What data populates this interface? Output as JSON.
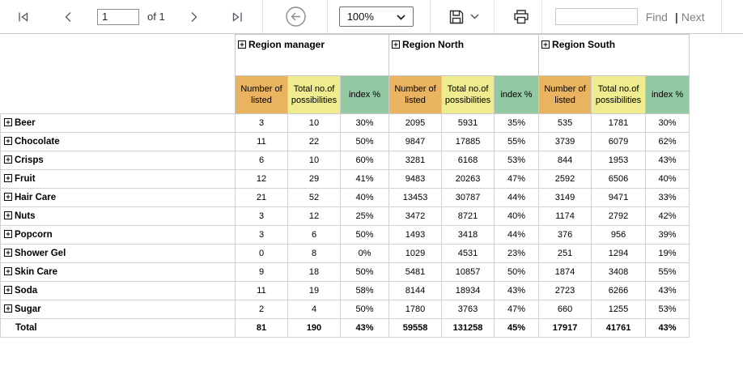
{
  "toolbar": {
    "page_input_value": "1",
    "page_count_label": "of 1",
    "zoom_value": "100%",
    "find_label": "Find",
    "divider_label": "|",
    "next_label": "Next",
    "search_value": ""
  },
  "icons": {
    "first-page-icon": "|◁",
    "previous-page-icon": "‹",
    "next-page-icon": "›",
    "last-page-icon": "▷|",
    "back-icon": "circled left arrow",
    "save-icon": "floppy disk",
    "chevron-down-icon": "⌄",
    "print-icon": "printer",
    "expand-icon": "⊞ plus box"
  },
  "colors": {
    "header_listed": "#EAB35F",
    "header_possibilities": "#EEEC8F",
    "header_index": "#92C8A2",
    "grid_border": "#d2d2d2"
  },
  "table": {
    "column_groups": [
      {
        "label": "Region manager"
      },
      {
        "label": "Region North"
      },
      {
        "label": "Region South"
      }
    ],
    "sub_columns": [
      "Number of listed",
      "Total no.of possibilities",
      "index %"
    ],
    "rows": [
      {
        "label": "Beer",
        "expandable": true,
        "total": false,
        "values": [
          "3",
          "10",
          "30%",
          "2095",
          "5931",
          "35%",
          "535",
          "1781",
          "30%"
        ]
      },
      {
        "label": "Chocolate",
        "expandable": true,
        "total": false,
        "values": [
          "11",
          "22",
          "50%",
          "9847",
          "17885",
          "55%",
          "3739",
          "6079",
          "62%"
        ]
      },
      {
        "label": "Crisps",
        "expandable": true,
        "total": false,
        "values": [
          "6",
          "10",
          "60%",
          "3281",
          "6168",
          "53%",
          "844",
          "1953",
          "43%"
        ]
      },
      {
        "label": "Fruit",
        "expandable": true,
        "total": false,
        "values": [
          "12",
          "29",
          "41%",
          "9483",
          "20263",
          "47%",
          "2592",
          "6506",
          "40%"
        ]
      },
      {
        "label": "Hair Care",
        "expandable": true,
        "total": false,
        "values": [
          "21",
          "52",
          "40%",
          "13453",
          "30787",
          "44%",
          "3149",
          "9471",
          "33%"
        ]
      },
      {
        "label": "Nuts",
        "expandable": true,
        "total": false,
        "values": [
          "3",
          "12",
          "25%",
          "3472",
          "8721",
          "40%",
          "1174",
          "2792",
          "42%"
        ]
      },
      {
        "label": "Popcorn",
        "expandable": true,
        "total": false,
        "values": [
          "3",
          "6",
          "50%",
          "1493",
          "3418",
          "44%",
          "376",
          "956",
          "39%"
        ]
      },
      {
        "label": "Shower Gel",
        "expandable": true,
        "total": false,
        "values": [
          "0",
          "8",
          "0%",
          "1029",
          "4531",
          "23%",
          "251",
          "1294",
          "19%"
        ]
      },
      {
        "label": "Skin Care",
        "expandable": true,
        "total": false,
        "values": [
          "9",
          "18",
          "50%",
          "5481",
          "10857",
          "50%",
          "1874",
          "3408",
          "55%"
        ]
      },
      {
        "label": "Soda",
        "expandable": true,
        "total": false,
        "values": [
          "11",
          "19",
          "58%",
          "8144",
          "18934",
          "43%",
          "2723",
          "6266",
          "43%"
        ]
      },
      {
        "label": "Sugar",
        "expandable": true,
        "total": false,
        "values": [
          "2",
          "4",
          "50%",
          "1780",
          "3763",
          "47%",
          "660",
          "1255",
          "53%"
        ]
      },
      {
        "label": "Total",
        "expandable": false,
        "total": true,
        "values": [
          "81",
          "190",
          "43%",
          "59558",
          "131258",
          "45%",
          "17917",
          "41761",
          "43%"
        ]
      }
    ]
  }
}
